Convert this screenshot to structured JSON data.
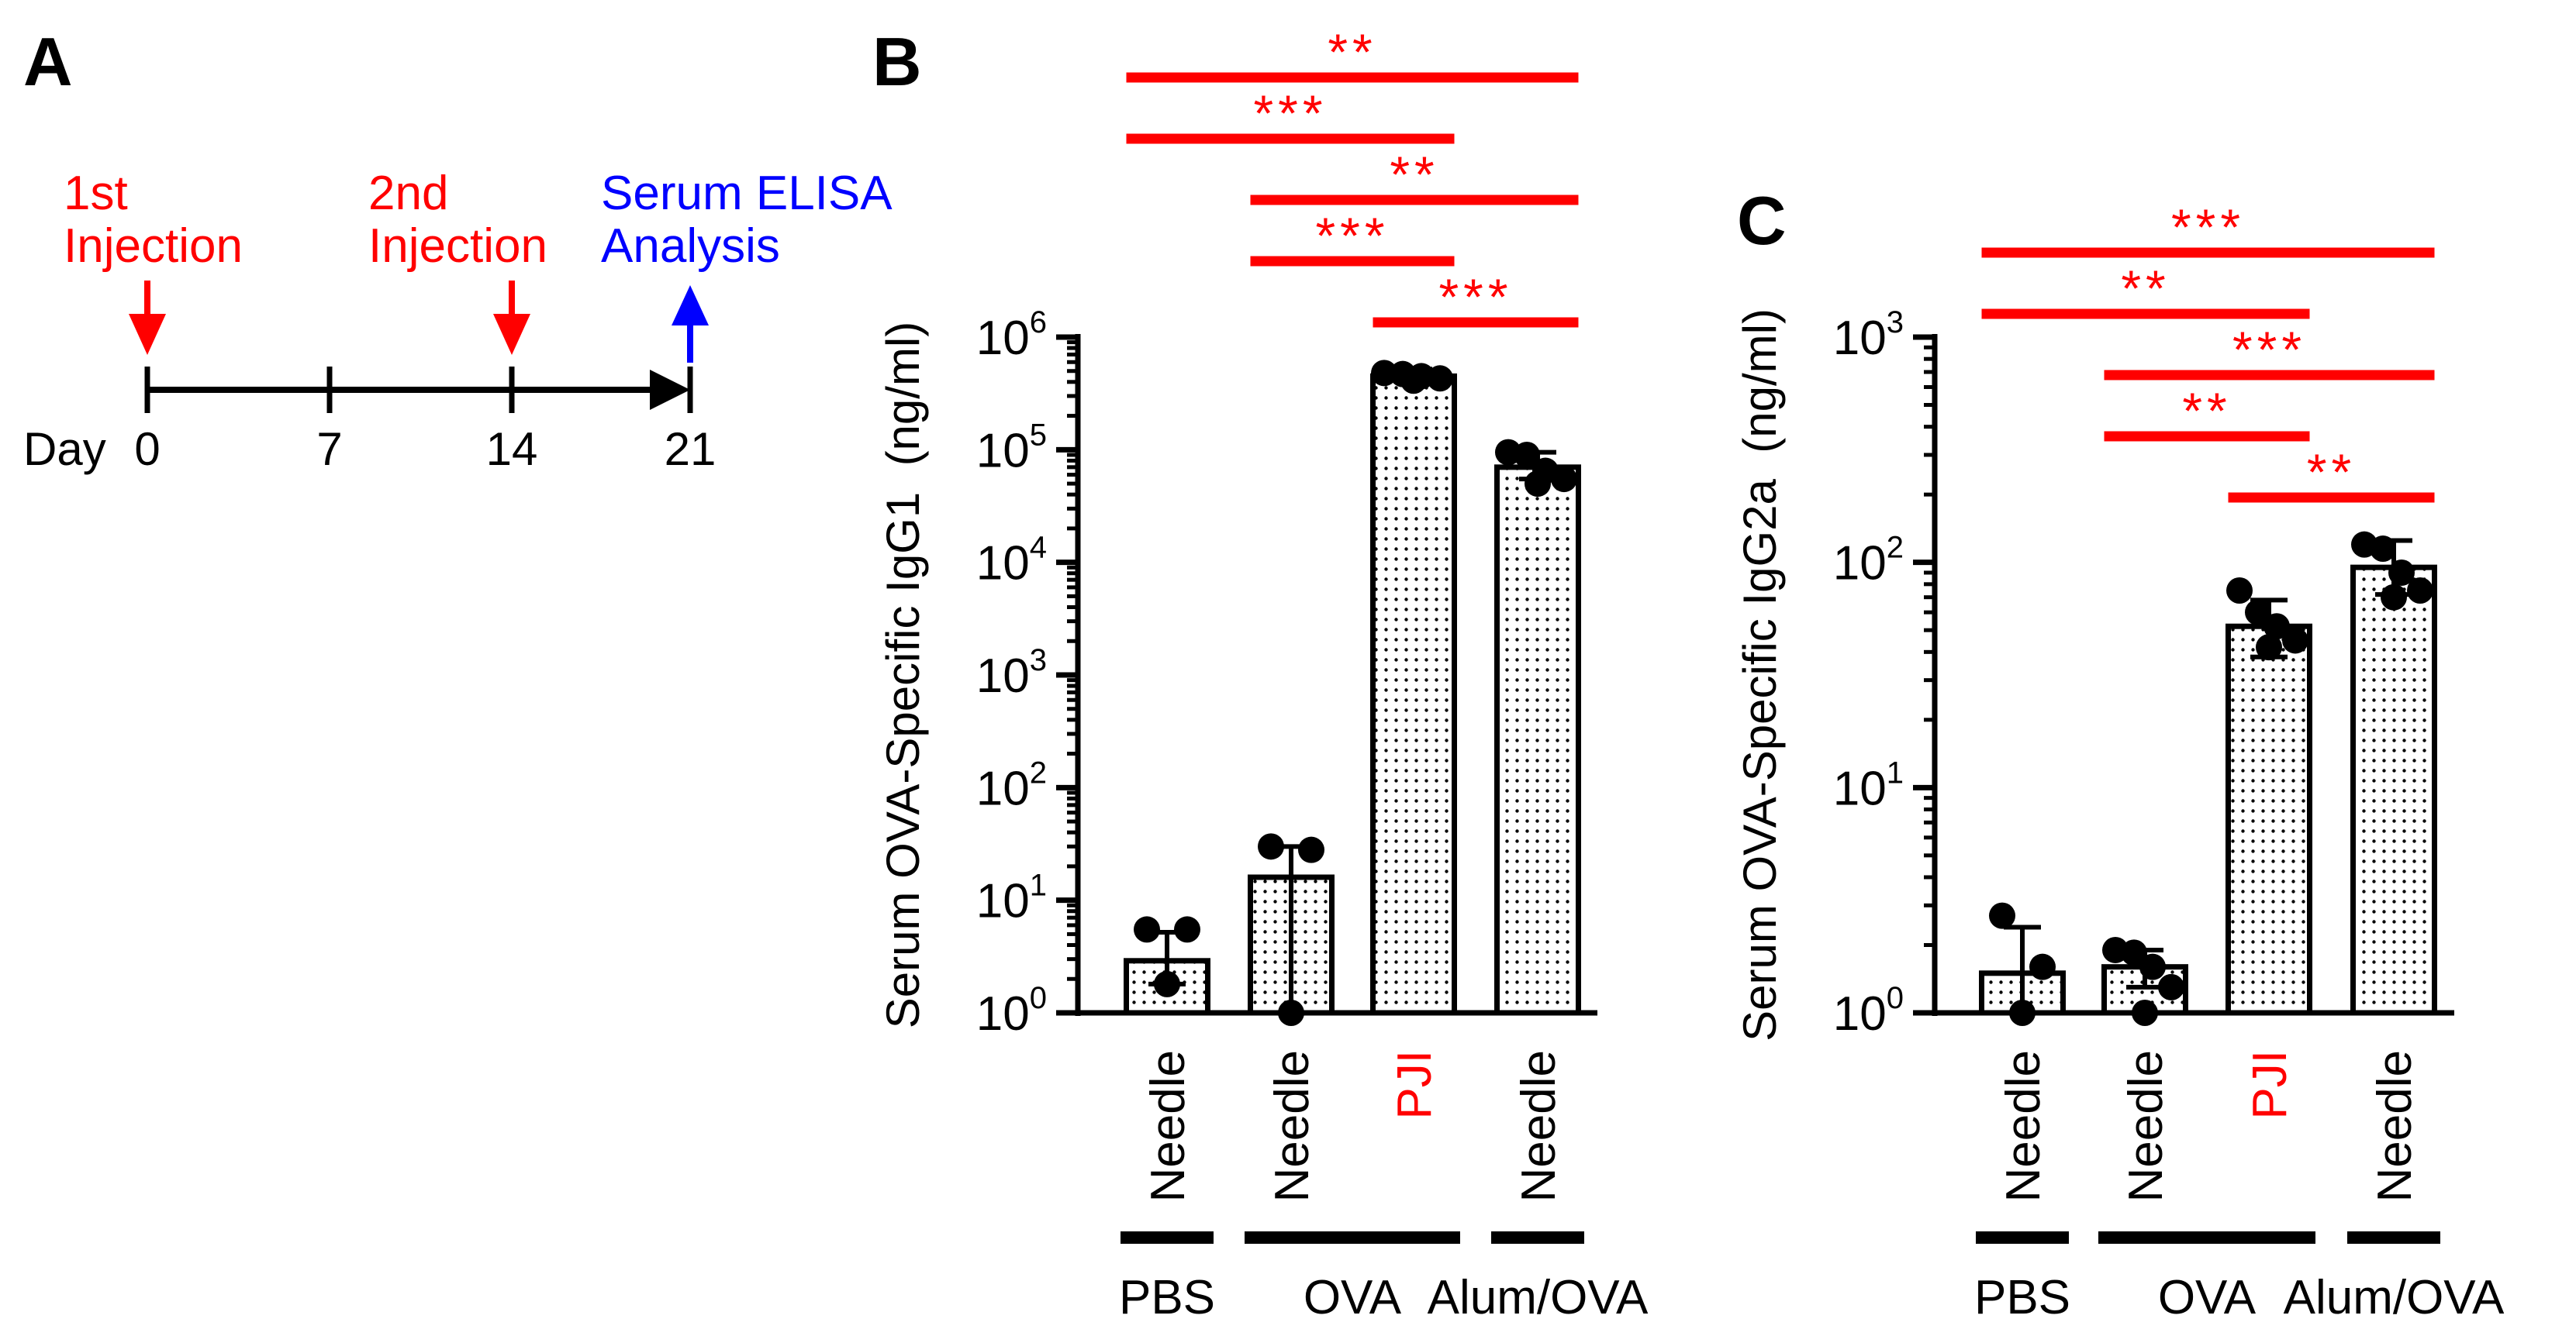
{
  "panel_labels": {
    "a": "A",
    "b": "B",
    "c": "C"
  },
  "colors": {
    "black": "#000000",
    "red": "#ff0000",
    "blue": "#0000ff"
  },
  "timeline": {
    "day_label": "Day",
    "ticks": [
      "0",
      "7",
      "14",
      "21"
    ],
    "events": [
      {
        "name": "first-injection",
        "lines": [
          "1st",
          "Injection"
        ],
        "day": 0,
        "color": "#ff0000",
        "direction": "down"
      },
      {
        "name": "second-injection",
        "lines": [
          "2nd",
          "Injection"
        ],
        "day": 14,
        "color": "#ff0000",
        "direction": "down"
      },
      {
        "name": "serum-elisa",
        "lines": [
          "Serum ELISA",
          "Analysis"
        ],
        "day": 21,
        "color": "#0000ff",
        "direction": "up"
      }
    ]
  },
  "groups": [
    {
      "label": "PBS",
      "bars": [
        0
      ]
    },
    {
      "label": "OVA",
      "bars": [
        1,
        2
      ]
    },
    {
      "label": "Alum/OVA",
      "bars": [
        3
      ]
    }
  ],
  "chart_data": [
    {
      "panel": "B",
      "type": "bar",
      "yscale": "log",
      "ylabel": "Serum OVA-Specific IgG1  (ng/ml)",
      "ylim": [
        1,
        1000000
      ],
      "y_ticks": [
        {
          "value": 1,
          "base": "10",
          "exp": "0"
        },
        {
          "value": 10,
          "base": "10",
          "exp": "1"
        },
        {
          "value": 100,
          "base": "10",
          "exp": "2"
        },
        {
          "value": 1000,
          "base": "10",
          "exp": "3"
        },
        {
          "value": 10000,
          "base": "10",
          "exp": "4"
        },
        {
          "value": 100000,
          "base": "10",
          "exp": "5"
        },
        {
          "value": 1000000,
          "base": "10",
          "exp": "6"
        }
      ],
      "categories": [
        "Needle",
        "Needle",
        "PJI",
        "Needle"
      ],
      "category_colors": [
        "#000000",
        "#000000",
        "#ff0000",
        "#000000"
      ],
      "values": [
        2.9,
        16,
        450000,
        70000
      ],
      "error_high": [
        5.2,
        30,
        520000,
        95000
      ],
      "error_low": [
        1.8,
        1,
        400000,
        55000
      ],
      "points": [
        [
          5.5,
          5.5,
          1.8
        ],
        [
          30,
          28,
          1
        ],
        [
          480000,
          470000,
          450000,
          430000,
          410000
        ],
        [
          95000,
          90000,
          65000,
          55000,
          50000
        ]
      ],
      "significance": [
        {
          "from": 0,
          "to": 3,
          "label": "**"
        },
        {
          "from": 0,
          "to": 2,
          "label": "***"
        },
        {
          "from": 1,
          "to": 3,
          "label": "**"
        },
        {
          "from": 1,
          "to": 2,
          "label": "***"
        },
        {
          "from": 2,
          "to": 3,
          "label": "***"
        }
      ]
    },
    {
      "panel": "C",
      "type": "bar",
      "yscale": "log",
      "ylabel": "Serum OVA-Specific IgG2a  (ng/ml)",
      "ylim": [
        1,
        1000
      ],
      "y_ticks": [
        {
          "value": 1,
          "base": "10",
          "exp": "0"
        },
        {
          "value": 10,
          "base": "10",
          "exp": "1"
        },
        {
          "value": 100,
          "base": "10",
          "exp": "2"
        },
        {
          "value": 1000,
          "base": "10",
          "exp": "3"
        }
      ],
      "categories": [
        "Needle",
        "Needle",
        "PJI",
        "Needle"
      ],
      "category_colors": [
        "#000000",
        "#000000",
        "#ff0000",
        "#000000"
      ],
      "values": [
        1.5,
        1.6,
        52,
        95
      ],
      "error_high": [
        2.4,
        1.9,
        68,
        125
      ],
      "error_low": [
        1.0,
        1.3,
        38,
        72
      ],
      "points": [
        [
          2.7,
          1.6,
          1.0
        ],
        [
          1.9,
          1.85,
          1.6,
          1.3,
          1.0
        ],
        [
          75,
          60,
          52,
          45,
          42
        ],
        [
          120,
          115,
          90,
          75,
          70
        ]
      ],
      "significance": [
        {
          "from": 0,
          "to": 3,
          "label": "***"
        },
        {
          "from": 0,
          "to": 2,
          "label": "**"
        },
        {
          "from": 1,
          "to": 3,
          "label": "***"
        },
        {
          "from": 1,
          "to": 2,
          "label": "**"
        },
        {
          "from": 2,
          "to": 3,
          "label": "**"
        }
      ]
    }
  ]
}
